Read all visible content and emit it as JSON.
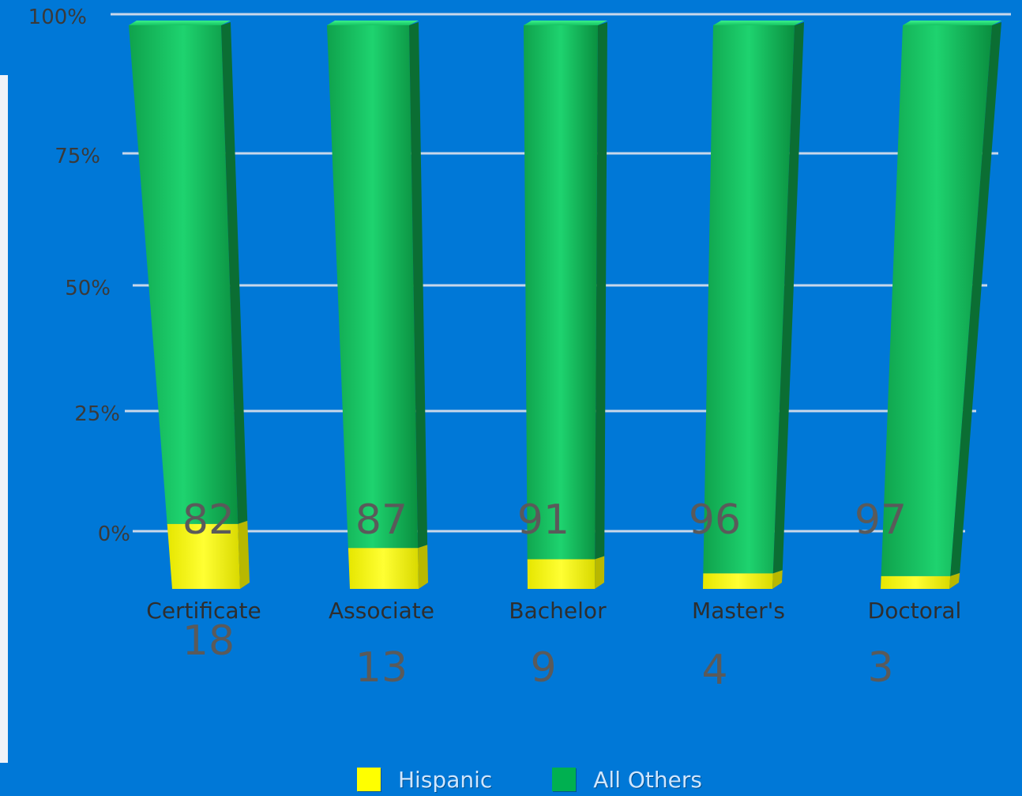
{
  "chart_data": {
    "type": "bar",
    "stacked": true,
    "normalized_percent": true,
    "categories": [
      "Certificate",
      "Associate",
      "Bachelor",
      "Master's",
      "Doctoral"
    ],
    "series": [
      {
        "name": "Hispanic",
        "values": [
          18,
          13,
          9,
          4,
          3
        ],
        "color": "#ffff00"
      },
      {
        "name": "All Others",
        "values": [
          82,
          87,
          91,
          96,
          97
        ],
        "color": "#00b050"
      }
    ],
    "y_ticks": [
      "0%",
      "25%",
      "50%",
      "75%",
      "100%"
    ],
    "ylim": [
      0,
      100
    ],
    "grid": true,
    "legend_position": "bottom-center",
    "background_color": "#0078d7",
    "grid_color": "#c8d7ea",
    "label_color": "#5a5a5a"
  }
}
